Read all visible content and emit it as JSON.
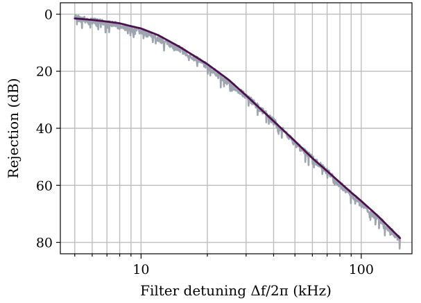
{
  "chart_data": {
    "type": "line",
    "xlabel": "Filter detuning Δf/2π (kHz)",
    "ylabel": "Rejection (dB)",
    "x_scale": "log",
    "y_inverted": true,
    "xlim": [
      4.3,
      170
    ],
    "ylim": [
      -4,
      84
    ],
    "x_ticks": [
      10,
      100
    ],
    "x_tick_labels": [
      "10",
      "100"
    ],
    "y_ticks": [
      0,
      20,
      40,
      60,
      80
    ],
    "y_tick_labels": [
      "0",
      "20",
      "40",
      "60",
      "80"
    ],
    "grid": true,
    "series": [
      {
        "kind": "measured",
        "color": "#9aa0ab",
        "x": [
          5,
          6,
          7,
          8,
          9,
          10,
          12,
          15,
          20,
          25,
          30,
          40,
          50,
          60,
          70,
          80,
          90,
          100,
          120,
          150
        ],
        "values": [
          1.2,
          2.5,
          2.9,
          4.2,
          5.2,
          6.1,
          8.6,
          12.3,
          18.2,
          24.1,
          28.7,
          37.6,
          45.2,
          50.6,
          55.2,
          59.8,
          63.1,
          66.6,
          71.9,
          79.0
        ]
      },
      {
        "kind": "fit",
        "color": "#4b1050",
        "x": [
          5,
          6,
          7,
          8,
          9,
          10,
          12,
          15,
          20,
          25,
          30,
          40,
          50,
          60,
          70,
          80,
          90,
          100,
          120,
          150
        ],
        "values": [
          1.5,
          2.0,
          2.6,
          3.2,
          4.2,
          5.0,
          7.4,
          11.5,
          17.5,
          23.0,
          28.5,
          37.5,
          44.5,
          50.5,
          55.0,
          59.0,
          62.5,
          65.5,
          71.0,
          78.5
        ]
      }
    ]
  }
}
